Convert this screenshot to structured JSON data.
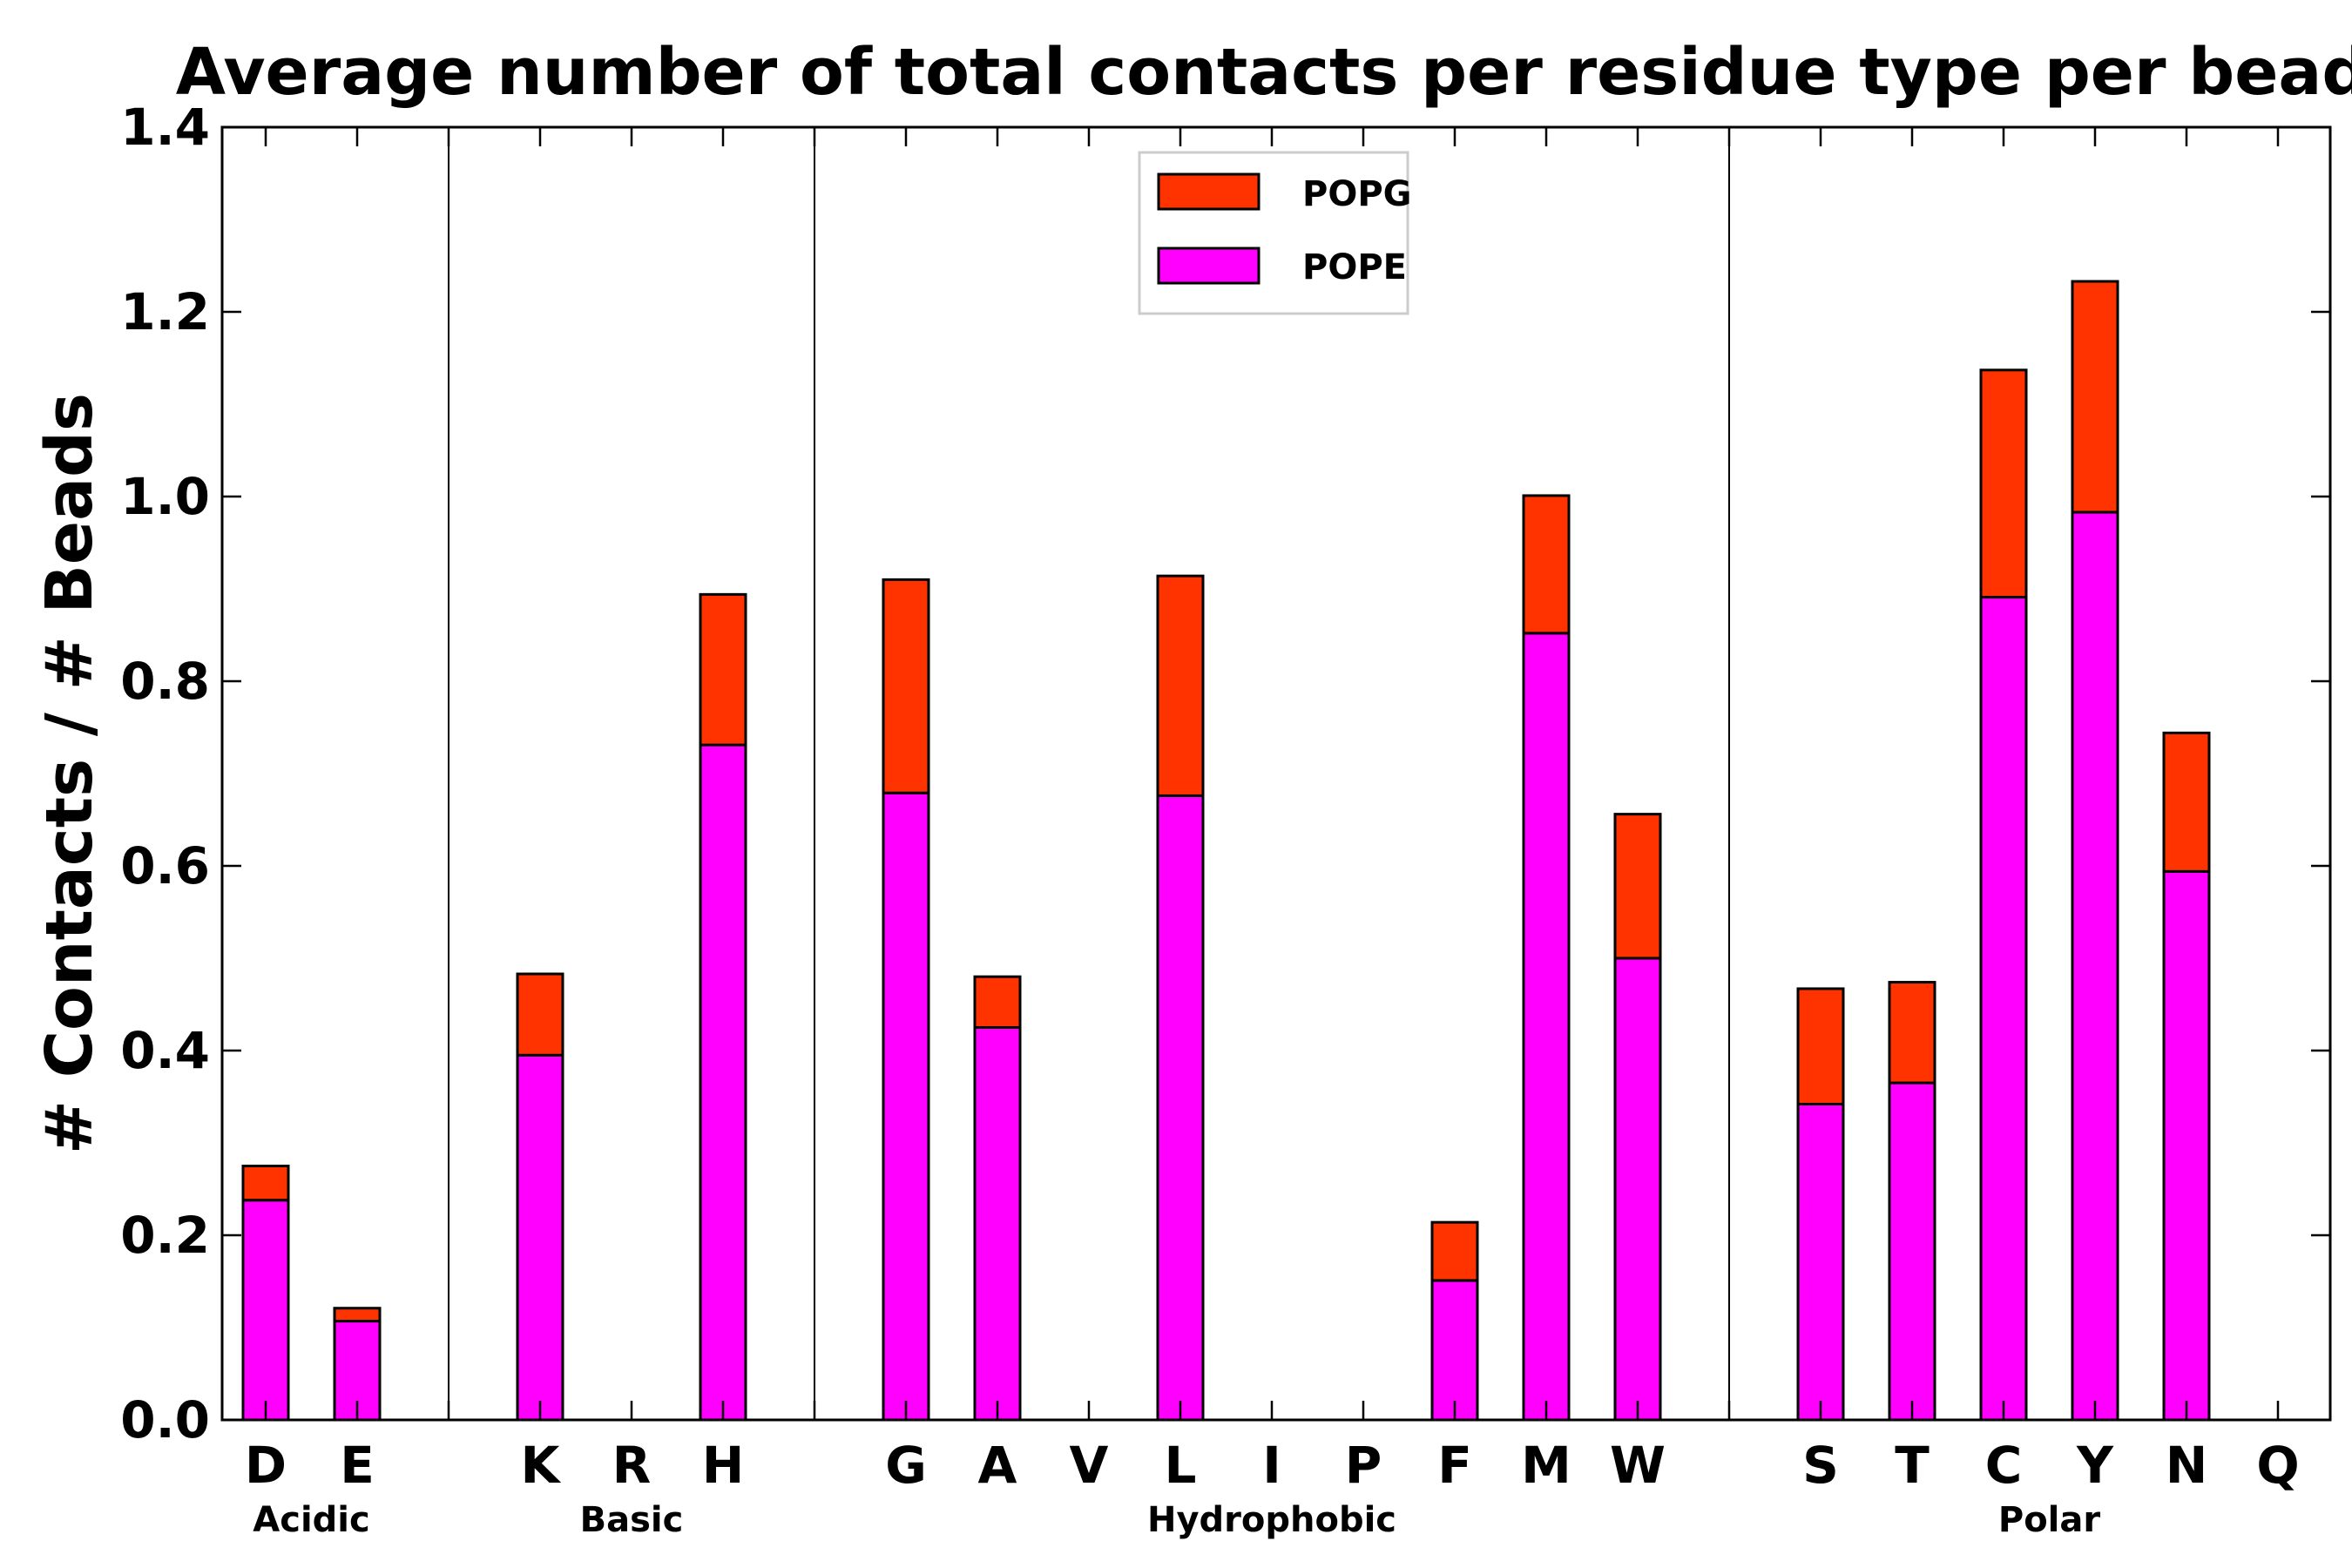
{
  "chart_data": {
    "type": "bar",
    "stacked": true,
    "title": "Average number of total contacts per residue type per bead",
    "xlabel": "",
    "ylabel": "# Contacts / # Beads",
    "ylim": [
      0.0,
      1.4
    ],
    "yticks": [
      "0.0",
      "0.2",
      "0.4",
      "0.6",
      "0.8",
      "1.0",
      "1.2",
      "1.4"
    ],
    "legend_position": "top-center",
    "categories": [
      "D",
      "E",
      "",
      "K",
      "R",
      "H",
      "",
      "G",
      "A",
      "V",
      "L",
      "I",
      "P",
      "F",
      "M",
      "W",
      "",
      "S",
      "T",
      "C",
      "Y",
      "N",
      "Q"
    ],
    "series": [
      {
        "name": "POPE",
        "color": "#ff00ff",
        "values": [
          0.238,
          0.107,
          0,
          0.395,
          0,
          0.731,
          0,
          0.679,
          0.425,
          0,
          0.676,
          0,
          0,
          0.151,
          0.852,
          0.5,
          0,
          0.342,
          0.365,
          0.891,
          0.983,
          0.594,
          0
        ]
      },
      {
        "name": "POPG",
        "color": "#ff3300",
        "values": [
          0.037,
          0.014,
          0,
          0.088,
          0,
          0.163,
          0,
          0.231,
          0.055,
          0,
          0.238,
          0,
          0,
          0.063,
          0.149,
          0.156,
          0,
          0.125,
          0.109,
          0.246,
          0.25,
          0.15,
          0
        ]
      }
    ],
    "legend": [
      "POPG",
      "POPE"
    ],
    "groups": [
      {
        "name": "Acidic",
        "first": 0,
        "last": 1
      },
      {
        "name": "Basic",
        "first": 3,
        "last": 5
      },
      {
        "name": "Hydrophobic",
        "first": 7,
        "last": 15
      },
      {
        "name": "Polar",
        "first": 17,
        "last": 22
      }
    ],
    "separators_after": [
      2,
      6,
      16
    ]
  }
}
